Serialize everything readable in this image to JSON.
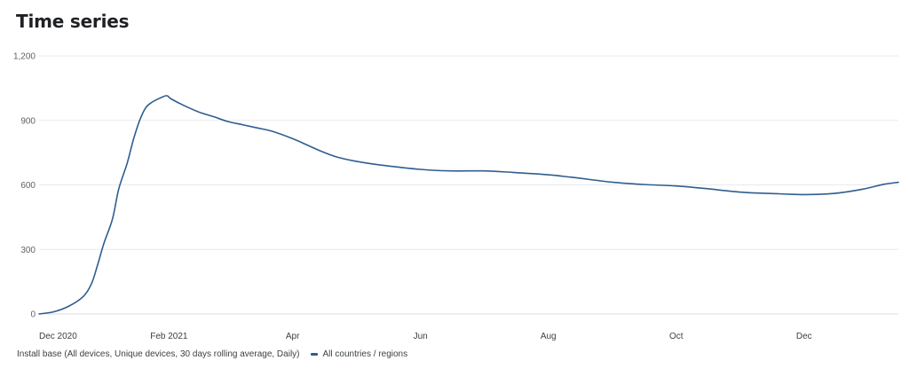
{
  "card": {
    "title": "Time series"
  },
  "legend": {
    "metric": "Install base (All devices, Unique devices, 30 days rolling average, Daily)",
    "series_label": "All countries / regions"
  },
  "colors": {
    "series": "#2e5e8f",
    "grid": "#e8eaed"
  },
  "chart_data": {
    "type": "line",
    "title": "Time series",
    "xlabel": "",
    "ylabel": "",
    "ylim": [
      0,
      1200
    ],
    "yticks": [
      0,
      300,
      600,
      900,
      1200
    ],
    "ytick_labels": [
      "0",
      "300",
      "600",
      "900",
      "1,200"
    ],
    "xlim": [
      "2020-12-01",
      "2022-01-15"
    ],
    "xticks": [
      "2020-12-01",
      "2021-02-01",
      "2021-04-01",
      "2021-06-01",
      "2021-08-01",
      "2021-10-01",
      "2021-12-01"
    ],
    "xtick_labels": [
      "Dec 2020",
      "Feb 2021",
      "Apr",
      "Jun",
      "Aug",
      "Oct",
      "Dec"
    ],
    "grid": true,
    "legend_position": "bottom-left",
    "series": [
      {
        "name": "All countries / regions",
        "x": [
          "2020-12-01",
          "2020-12-08",
          "2020-12-15",
          "2020-12-22",
          "2020-12-26",
          "2020-12-29",
          "2021-01-01",
          "2021-01-05",
          "2021-01-08",
          "2021-01-12",
          "2021-01-15",
          "2021-01-18",
          "2021-01-21",
          "2021-01-24",
          "2021-01-28",
          "2021-01-31",
          "2021-02-02",
          "2021-02-08",
          "2021-02-15",
          "2021-02-22",
          "2021-03-01",
          "2021-03-08",
          "2021-03-15",
          "2021-03-22",
          "2021-04-01",
          "2021-04-08",
          "2021-04-15",
          "2021-04-22",
          "2021-05-01",
          "2021-05-15",
          "2021-06-01",
          "2021-06-15",
          "2021-07-01",
          "2021-07-15",
          "2021-08-01",
          "2021-08-15",
          "2021-09-01",
          "2021-09-15",
          "2021-10-01",
          "2021-10-15",
          "2021-11-01",
          "2021-11-15",
          "2021-12-01",
          "2021-12-15",
          "2021-12-29",
          "2022-01-08",
          "2022-01-15"
        ],
        "values": [
          0,
          10,
          35,
          80,
          140,
          230,
          330,
          440,
          580,
          700,
          810,
          900,
          960,
          985,
          1005,
          1015,
          1000,
          970,
          940,
          918,
          895,
          880,
          865,
          850,
          815,
          785,
          755,
          730,
          710,
          690,
          672,
          665,
          665,
          658,
          647,
          632,
          612,
          602,
          595,
          583,
          566,
          560,
          555,
          560,
          580,
          603,
          612
        ]
      }
    ]
  }
}
